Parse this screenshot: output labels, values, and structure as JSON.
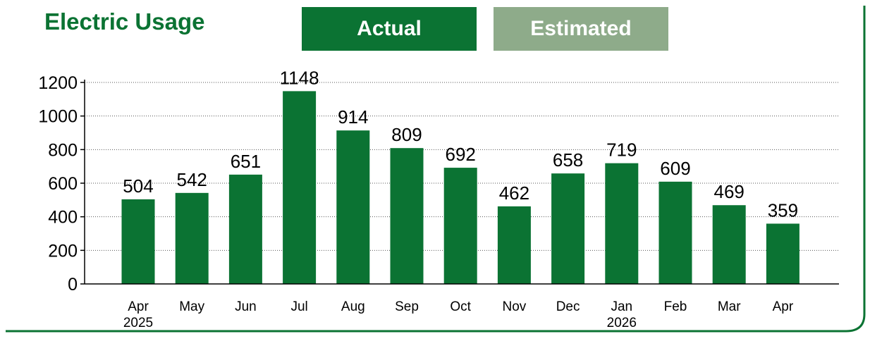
{
  "header": {
    "title": "Electric Usage",
    "legend_actual": "Actual",
    "legend_estimated": "Estimated"
  },
  "colors": {
    "accent": "#0b7333",
    "estimated": "#8eab8a",
    "bar": "#0b7333"
  },
  "chart_data": {
    "type": "bar",
    "title": "Electric Usage",
    "xlabel": "",
    "ylabel": "",
    "ylim": [
      0,
      1200
    ],
    "yticks": [
      0,
      200,
      400,
      600,
      800,
      1000,
      1200
    ],
    "grid": true,
    "legend": "top",
    "categories": [
      "Apr",
      "May",
      "Jun",
      "Jul",
      "Aug",
      "Sep",
      "Oct",
      "Nov",
      "Dec",
      "Jan",
      "Feb",
      "Mar",
      "Apr"
    ],
    "category_years": [
      "2025",
      "",
      "",
      "",
      "",
      "",
      "",
      "",
      "",
      "2026",
      "",
      "",
      ""
    ],
    "series": [
      {
        "name": "Actual",
        "values": [
          504,
          542,
          651,
          1148,
          914,
          809,
          692,
          462,
          658,
          719,
          609,
          469,
          359
        ]
      }
    ]
  }
}
